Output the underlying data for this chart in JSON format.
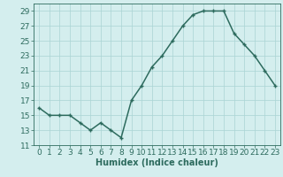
{
  "x": [
    0,
    1,
    2,
    3,
    4,
    5,
    6,
    7,
    8,
    9,
    10,
    11,
    12,
    13,
    14,
    15,
    16,
    17,
    18,
    19,
    20,
    21,
    22,
    23
  ],
  "y": [
    16,
    15,
    15,
    15,
    14,
    13,
    14,
    13,
    12,
    17,
    19,
    21.5,
    23,
    25,
    27,
    28.5,
    29,
    29,
    29,
    26,
    24.5,
    23,
    21,
    19
  ],
  "line_color": "#2d6b5e",
  "marker": "+",
  "bg_color": "#d4eeee",
  "grid_color": "#aad4d4",
  "xlabel": "Humidex (Indice chaleur)",
  "xlim": [
    -0.5,
    23.5
  ],
  "ylim": [
    11,
    30
  ],
  "yticks": [
    11,
    13,
    15,
    17,
    19,
    21,
    23,
    25,
    27,
    29
  ],
  "xticks": [
    0,
    1,
    2,
    3,
    4,
    5,
    6,
    7,
    8,
    9,
    10,
    11,
    12,
    13,
    14,
    15,
    16,
    17,
    18,
    19,
    20,
    21,
    22,
    23
  ],
  "xtick_labels": [
    "0",
    "1",
    "2",
    "3",
    "4",
    "5",
    "6",
    "7",
    "8",
    "9",
    "10",
    "11",
    "12",
    "13",
    "14",
    "15",
    "16",
    "17",
    "18",
    "19",
    "20",
    "21",
    "22",
    "23"
  ],
  "xlabel_fontsize": 7,
  "tick_fontsize": 6.5,
  "linewidth": 1.1,
  "markersize": 3.5
}
